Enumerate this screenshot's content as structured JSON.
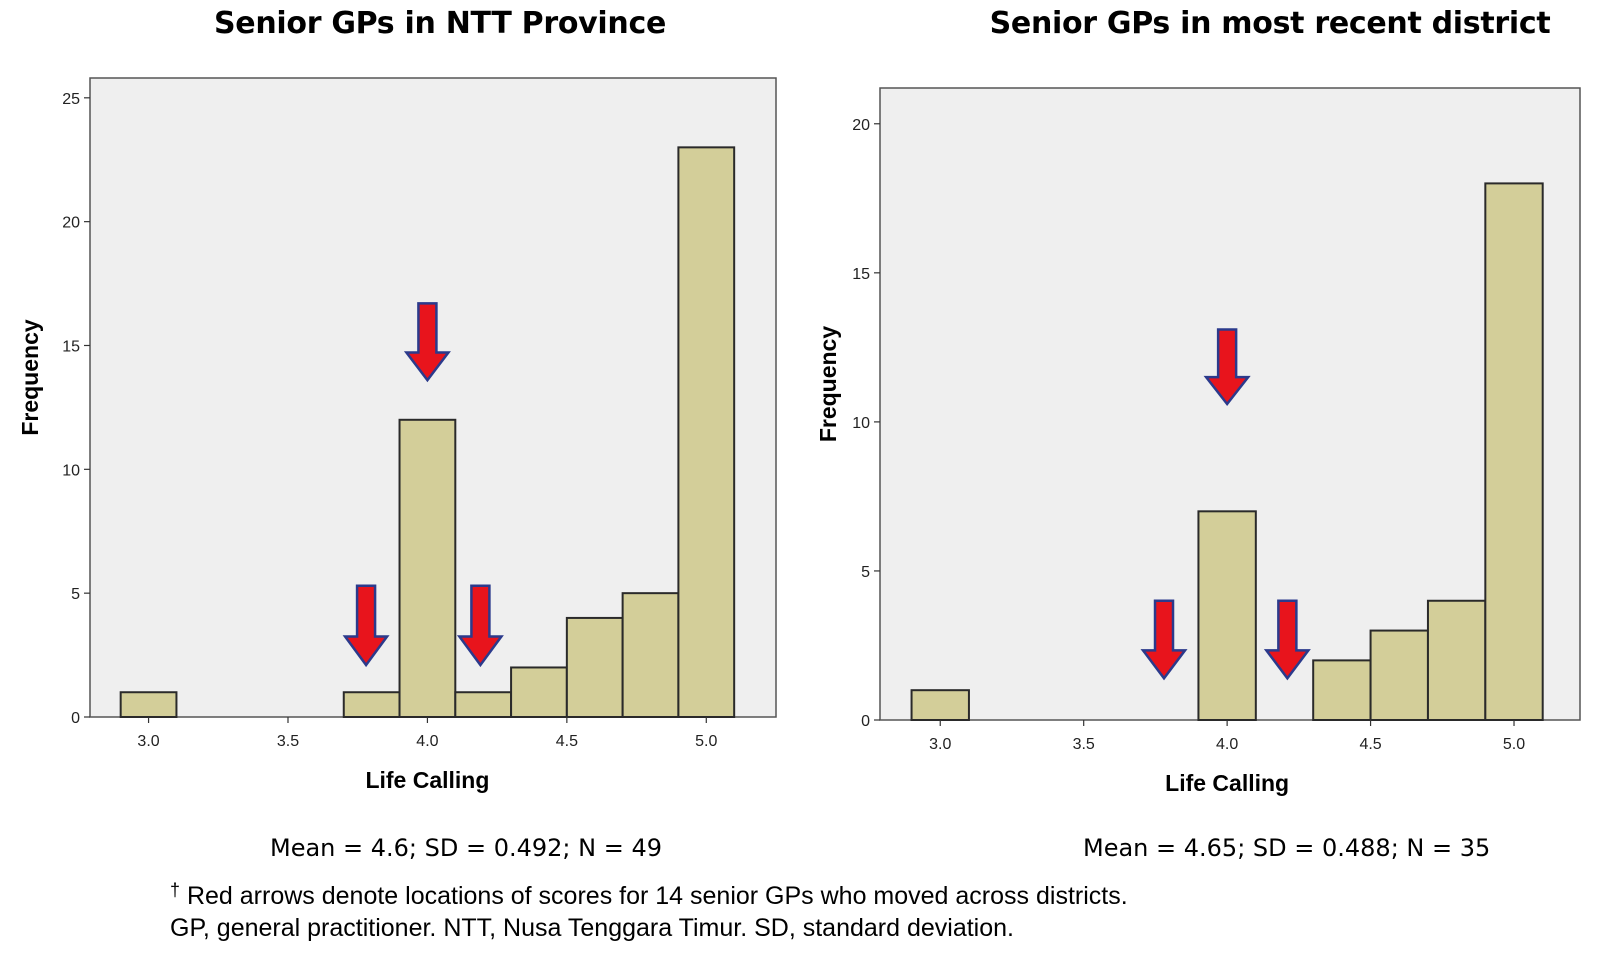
{
  "figure": {
    "footnote_marker": "†",
    "footnote_line1": "Red arrows denote locations of scores for 14 senior GPs who moved across districts.",
    "footnote_line2": "GP, general practitioner. NTT, Nusa Tenggara Timur. SD, standard deviation."
  },
  "colors": {
    "plot_background": "#efefef",
    "bar_fill": "#d3ce99",
    "bar_stroke": "#2a2a2a",
    "arrow_fill": "#e8141c",
    "arrow_stroke": "#2b3a8c"
  },
  "chart_data": [
    {
      "type": "bar",
      "title": "Senior GPs in NTT Province",
      "xlabel": "Life Calling",
      "ylabel": "Frequency",
      "stats_text": "Mean = 4.6; SD = 0.492; N = 49",
      "bin_width": 0.2,
      "bins": [
        {
          "center": 3.0,
          "count": 1
        },
        {
          "center": 3.8,
          "count": 1
        },
        {
          "center": 4.0,
          "count": 12
        },
        {
          "center": 4.2,
          "count": 1
        },
        {
          "center": 4.4,
          "count": 2
        },
        {
          "center": 4.6,
          "count": 4
        },
        {
          "center": 4.8,
          "count": 5
        },
        {
          "center": 5.0,
          "count": 23
        }
      ],
      "x_ticks": [
        3.0,
        3.5,
        4.0,
        4.5,
        5.0
      ],
      "x_tick_labels": [
        "3.0",
        "3.5",
        "4.0",
        "4.5",
        "5.0"
      ],
      "xlim": [
        2.79,
        5.25
      ],
      "y_ticks": [
        0,
        5,
        10,
        15,
        20,
        25
      ],
      "y_tick_labels": [
        "0",
        "5",
        "10",
        "15",
        "20",
        "25"
      ],
      "ylim": [
        0,
        25.8
      ],
      "annotations": [
        {
          "kind": "arrow",
          "x": 4.0,
          "y_top": 16.7,
          "y_tip": 13.6
        },
        {
          "kind": "arrow",
          "x": 3.78,
          "y_top": 5.3,
          "y_tip": 2.1
        },
        {
          "kind": "arrow",
          "x": 4.19,
          "y_top": 5.3,
          "y_tip": 2.1
        }
      ]
    },
    {
      "type": "bar",
      "title": "Senior GPs in most recent district",
      "xlabel": "Life Calling",
      "ylabel": "Frequency",
      "stats_text": "Mean = 4.65; SD = 0.488; N = 35",
      "bin_width": 0.2,
      "bins": [
        {
          "center": 3.0,
          "count": 1
        },
        {
          "center": 4.0,
          "count": 7
        },
        {
          "center": 4.4,
          "count": 2
        },
        {
          "center": 4.6,
          "count": 3
        },
        {
          "center": 4.8,
          "count": 4
        },
        {
          "center": 5.0,
          "count": 18
        }
      ],
      "x_ticks": [
        3.0,
        3.5,
        4.0,
        4.5,
        5.0
      ],
      "x_tick_labels": [
        "3.0",
        "3.5",
        "4.0",
        "4.5",
        "5.0"
      ],
      "xlim": [
        2.79,
        5.23
      ],
      "y_ticks": [
        0,
        5,
        10,
        15,
        20
      ],
      "y_tick_labels": [
        "0",
        "5",
        "10",
        "15",
        "20"
      ],
      "ylim": [
        0,
        21.2
      ],
      "annotations": [
        {
          "kind": "arrow",
          "x": 4.0,
          "y_top": 13.1,
          "y_tip": 10.6
        },
        {
          "kind": "arrow",
          "x": 3.78,
          "y_top": 4.0,
          "y_tip": 1.4
        },
        {
          "kind": "arrow",
          "x": 4.21,
          "y_top": 4.0,
          "y_tip": 1.4
        }
      ]
    }
  ]
}
